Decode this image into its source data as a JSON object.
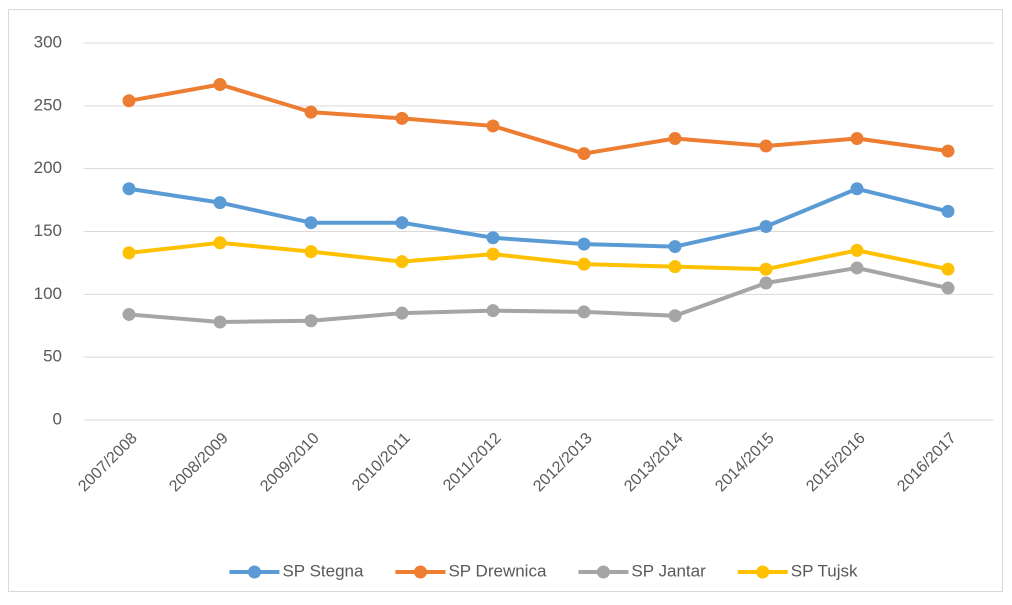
{
  "chart_data": {
    "type": "line",
    "categories": [
      "2007/2008",
      "2008/2009",
      "2009/2010",
      "2010/2011",
      "2011/2012",
      "2012/2013",
      "2013/2014",
      "2014/2015",
      "2015/2016",
      "2016/2017"
    ],
    "series": [
      {
        "name": "SP Stegna",
        "color": "#5b9bd5",
        "values": [
          184,
          173,
          157,
          157,
          145,
          140,
          138,
          154,
          184,
          166
        ]
      },
      {
        "name": "SP Drewnica",
        "color": "#ed7d31",
        "values": [
          254,
          267,
          245,
          240,
          234,
          212,
          224,
          218,
          224,
          214
        ]
      },
      {
        "name": "SP Jantar",
        "color": "#a5a5a5",
        "values": [
          84,
          78,
          79,
          85,
          87,
          86,
          83,
          109,
          121,
          105
        ]
      },
      {
        "name": "SP Tujsk",
        "color": "#ffc000",
        "values": [
          133,
          141,
          134,
          126,
          132,
          124,
          122,
          120,
          135,
          120
        ]
      }
    ],
    "ylim": [
      0,
      300
    ],
    "yticks": [
      0,
      50,
      100,
      150,
      200,
      250,
      300
    ],
    "grid": true,
    "legend": "bottom"
  }
}
